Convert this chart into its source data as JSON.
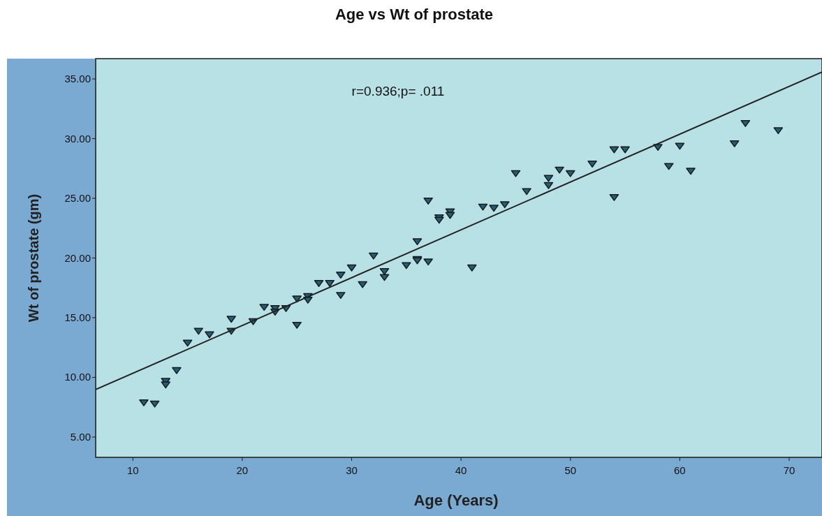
{
  "chart_data": {
    "type": "scatter",
    "title": "Age vs Wt of prostate",
    "xlabel": "Age (Years)",
    "ylabel": "Wt of prostate (gm)",
    "annotations": [
      "r=0.936;p= .011"
    ],
    "xlim": [
      6.6,
      73
    ],
    "xticks": [
      10,
      20,
      30,
      40,
      50,
      60,
      70
    ],
    "ylim": [
      3.3,
      36.7
    ],
    "yticks": [
      {
        "value": 5,
        "label": "5.00"
      },
      {
        "value": 10,
        "label": "10.00"
      },
      {
        "value": 15,
        "label": "15.00"
      },
      {
        "value": 20,
        "label": "20.00"
      },
      {
        "value": 25,
        "label": "25.00"
      },
      {
        "value": 30,
        "label": "30.00"
      },
      {
        "value": 35,
        "label": "35.00"
      }
    ],
    "grid": false,
    "series": [
      {
        "marker": "triangle",
        "color": "#1f5f78",
        "x": [
          11,
          12,
          13,
          13,
          14,
          15,
          16,
          17,
          19,
          19,
          21,
          22,
          23,
          23,
          24,
          25,
          25,
          26,
          26,
          27,
          28,
          29,
          29,
          30,
          31,
          32,
          33,
          33,
          35,
          36,
          36,
          36,
          37,
          37,
          38,
          38,
          39,
          39,
          41,
          42,
          43,
          44,
          45,
          46,
          48,
          48,
          49,
          50,
          52,
          54,
          54,
          55,
          58,
          59,
          60,
          61,
          65,
          66,
          69
        ],
        "values": [
          7.9,
          7.8,
          9.7,
          9.4,
          10.6,
          12.9,
          13.9,
          13.6,
          14.9,
          13.9,
          14.7,
          15.9,
          15.8,
          15.5,
          15.8,
          16.6,
          14.4,
          16.8,
          16.5,
          17.9,
          17.9,
          18.6,
          16.9,
          19.2,
          17.8,
          20.2,
          18.9,
          18.4,
          19.4,
          21.4,
          19.9,
          19.8,
          24.8,
          19.7,
          23.4,
          23.2,
          23.9,
          23.6,
          19.2,
          24.3,
          24.2,
          24.5,
          27.1,
          25.6,
          26.7,
          26.1,
          27.4,
          27.1,
          27.9,
          29.1,
          25.1,
          29.1,
          29.3,
          27.7,
          29.4,
          27.3,
          29.6,
          31.3,
          30.7
        ]
      },
      {
        "type": "line",
        "color": "#222222",
        "x": [
          6.6,
          73
        ],
        "values": [
          8.98,
          35.58
        ]
      }
    ]
  }
}
